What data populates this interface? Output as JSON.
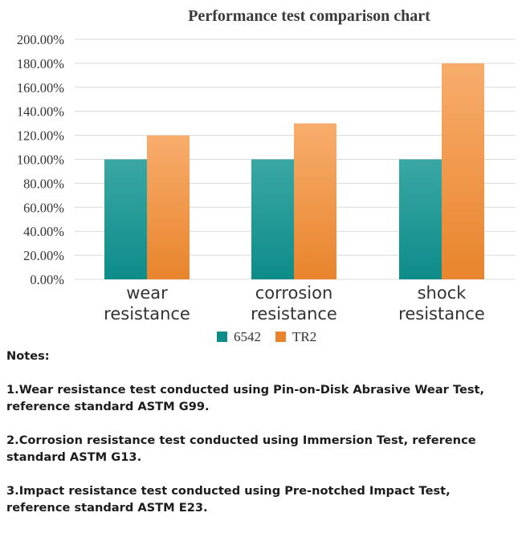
{
  "chart_data": {
    "type": "bar",
    "title": "Performance test comparison chart",
    "categories": [
      [
        "wear",
        "resistance"
      ],
      [
        "corrosion",
        "resistance"
      ],
      [
        "shock",
        "resistance"
      ]
    ],
    "series": [
      {
        "name": "6542",
        "values": [
          100,
          100,
          100
        ]
      },
      {
        "name": "TR2",
        "values": [
          120,
          130,
          180
        ]
      }
    ],
    "ylim": [
      0,
      200
    ],
    "y_ticks": [
      0,
      20,
      40,
      60,
      80,
      100,
      120,
      140,
      160,
      180,
      200
    ],
    "y_tick_labels": [
      "0.00%",
      "20.00%",
      "40.00%",
      "60.00%",
      "80.00%",
      "100.00%",
      "120.00%",
      "140.00%",
      "160.00%",
      "180.00%",
      "200.00%"
    ],
    "xlabel": "",
    "ylabel": "",
    "grid": true,
    "legend_position": "bottom-center"
  },
  "colors": {
    "series_6542_top": "#3aa7a4",
    "series_6542_bottom": "#0d8c8a",
    "series_tr2_top": "#f8ad6c",
    "series_tr2_bottom": "#e8842c",
    "grid": "#d9d9d9",
    "text": "#333333"
  },
  "notes": {
    "heading": "Notes:",
    "items": [
      "1.Wear resistance test conducted using Pin-on-Disk Abrasive Wear Test, reference standard ASTM G99.",
      "2.Corrosion resistance test conducted using Immersion Test, reference standard ASTM G13.",
      "3.Impact resistance test conducted using Pre-notched Impact Test, reference standard ASTM E23."
    ]
  }
}
